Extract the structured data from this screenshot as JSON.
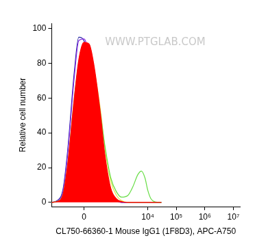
{
  "chart_data": {
    "type": "line",
    "x_label": "CL750-66360-1 Mouse IgG1 (1F8D3), APC-A750",
    "y_label": "Relative cell number",
    "annotations": [
      {
        "text": "WWW.PTGLAB.COM"
      }
    ],
    "x": [
      -780,
      -500,
      -300,
      -200,
      -100,
      -50,
      0,
      50,
      100,
      200,
      300,
      500,
      800,
      1200,
      2000,
      3000,
      4500,
      6000,
      8000,
      10000,
      13000,
      18000,
      30000
    ],
    "series": [
      {
        "type": "line",
        "color": "#1f1fa0",
        "values": [
          0,
          1,
          8,
          30,
          75,
          95,
          93,
          82,
          65,
          38,
          18,
          4,
          1,
          0,
          0,
          0,
          0,
          0,
          0,
          0,
          0,
          0,
          0
        ]
      },
      {
        "type": "line",
        "color": "#8a2be2",
        "values": [
          0,
          0.8,
          7,
          28,
          72,
          93,
          94,
          85,
          70,
          42,
          20,
          5,
          1,
          0,
          0,
          0,
          0,
          0,
          0,
          0,
          0,
          0,
          0
        ]
      },
      {
        "type": "line",
        "color": "#e8e040",
        "values": [
          0,
          0.5,
          4,
          20,
          58,
          80,
          90,
          88,
          78,
          54,
          32,
          12,
          4,
          1,
          0,
          0,
          0,
          0,
          0,
          0,
          0,
          0,
          0
        ]
      },
      {
        "type": "line",
        "color": "#66dd44",
        "values": [
          0,
          0.6,
          5,
          22,
          60,
          80,
          90,
          86,
          76,
          52,
          33,
          14,
          6,
          3,
          4,
          9,
          16,
          18,
          14,
          7,
          2,
          0.3,
          0
        ]
      },
      {
        "type": "area",
        "color": "#ff0000",
        "values": [
          0,
          0.5,
          5,
          22,
          60,
          82,
          92,
          91,
          80,
          52,
          28,
          8,
          2,
          0.5,
          0,
          0,
          0,
          0,
          0,
          0,
          0,
          0,
          0
        ]
      }
    ],
    "xlim": [
      -780,
      17000000
    ],
    "xticks": [
      0,
      {
        "value": 10000,
        "label": "10⁴"
      },
      {
        "value": 100000,
        "label": "10⁵"
      },
      {
        "value": 1000000,
        "label": "10⁶"
      },
      {
        "value": 10000000,
        "label": "10⁷"
      }
    ],
    "ylim": [
      -2.5,
      103
    ],
    "yticks": [
      0,
      20,
      40,
      60,
      80,
      100
    ],
    "grid": false
  }
}
